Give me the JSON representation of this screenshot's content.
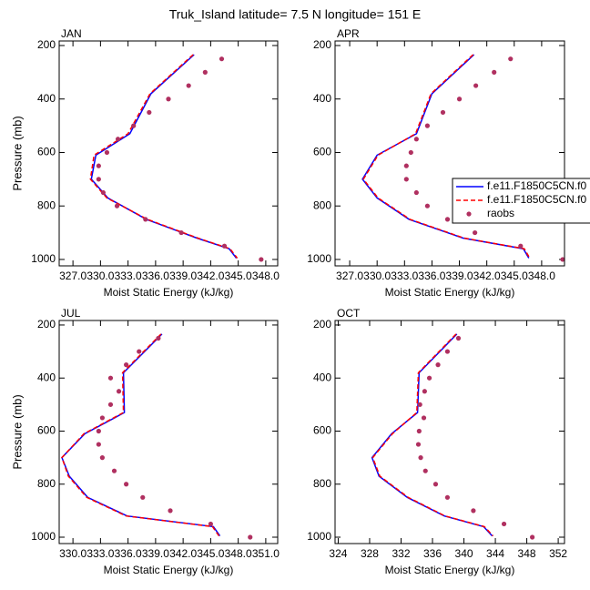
{
  "title": "Truk_Island  latitude= 7.5 N longitude= 151 E",
  "chart_data": [
    {
      "type": "line",
      "title": "JAN",
      "xlabel": "Moist Static Energy (kJ/kg)",
      "ylabel": "Pressure (mb)",
      "xlim": [
        325.5,
        349.3
      ],
      "ylim": [
        183,
        1024
      ],
      "yinverted": true,
      "xticks": [
        {
          "value": 327,
          "label": "327.0"
        },
        {
          "value": 330,
          "label": "330.0"
        },
        {
          "value": 333,
          "label": "333.0"
        },
        {
          "value": 336,
          "label": "336.0"
        },
        {
          "value": 339,
          "label": "339.0"
        },
        {
          "value": 342,
          "label": "342.0"
        },
        {
          "value": 345,
          "label": "345.0"
        },
        {
          "value": 348,
          "label": "348.0"
        }
      ],
      "yticks": [
        200,
        400,
        600,
        800,
        1000
      ],
      "series": [
        {
          "name": "f.e11.F1850C5CN.f0",
          "color": "#0000ff",
          "style": "solid",
          "x": [
            340.2,
            335.5,
            333.2,
            329.5,
            329.0,
            330.8,
            335.0,
            340.5,
            344.0,
            344.8
          ],
          "y": [
            234,
            380,
            530,
            610,
            700,
            770,
            850,
            920,
            960,
            995
          ]
        },
        {
          "name": "f.e11.F1850C5CN.f0",
          "color": "#ff0000",
          "style": "dashed",
          "x": [
            340.1,
            335.4,
            333.0,
            329.3,
            328.9,
            330.7,
            335.1,
            340.6,
            344.1,
            344.9
          ],
          "y": [
            234,
            380,
            530,
            610,
            700,
            770,
            850,
            920,
            960,
            995
          ]
        },
        {
          "name": "raobs",
          "color": "#b03060",
          "style": "markers",
          "x": [
            343.2,
            341.4,
            339.6,
            337.4,
            335.3,
            333.6,
            331.9,
            330.7,
            329.8,
            329.8,
            330.3,
            331.8,
            334.9,
            338.8,
            343.5,
            347.5
          ],
          "y": [
            250,
            300,
            350,
            400,
            450,
            500,
            550,
            600,
            650,
            700,
            750,
            800,
            850,
            900,
            950,
            1000
          ]
        }
      ]
    },
    {
      "type": "line",
      "title": "APR",
      "xlabel": "Moist Static Energy (kJ/kg)",
      "legend": "right",
      "xlim": [
        325.4,
        350.5
      ],
      "ylim": [
        183,
        1024
      ],
      "yinverted": true,
      "xticks": [
        {
          "value": 327,
          "label": "327.0"
        },
        {
          "value": 330,
          "label": "330.0"
        },
        {
          "value": 333,
          "label": "333.0"
        },
        {
          "value": 336,
          "label": "336.0"
        },
        {
          "value": 339,
          "label": "339.0"
        },
        {
          "value": 342,
          "label": "342.0"
        },
        {
          "value": 345,
          "label": "345.0"
        },
        {
          "value": 348,
          "label": "348.0"
        }
      ],
      "yticks": [
        200,
        400,
        600,
        800,
        1000
      ],
      "series": [
        {
          "name": "f.e11.F1850C5CN.f0",
          "color": "#0000ff",
          "style": "solid",
          "x": [
            340.6,
            336.0,
            334.3,
            330.0,
            328.4,
            330.0,
            333.5,
            339.4,
            346.0,
            346.6
          ],
          "y": [
            234,
            380,
            530,
            610,
            700,
            770,
            850,
            920,
            960,
            995
          ]
        },
        {
          "name": "f.e11.F1850C5CN.f0",
          "color": "#ff0000",
          "style": "dashed",
          "x": [
            340.5,
            335.9,
            334.2,
            330.1,
            328.5,
            330.1,
            333.6,
            339.5,
            346.1,
            346.7
          ],
          "y": [
            234,
            380,
            530,
            610,
            700,
            770,
            850,
            920,
            960,
            995
          ]
        },
        {
          "name": "raobs",
          "color": "#b03060",
          "style": "markers",
          "x": [
            344.6,
            342.8,
            340.8,
            339.0,
            337.2,
            335.5,
            334.3,
            333.7,
            333.2,
            333.2,
            334.3,
            335.5,
            337.7,
            340.7,
            345.7,
            350.3
          ],
          "y": [
            250,
            300,
            350,
            400,
            450,
            500,
            550,
            600,
            650,
            700,
            750,
            800,
            850,
            900,
            950,
            1000
          ]
        }
      ]
    },
    {
      "type": "line",
      "title": "JUL",
      "xlabel": "Moist Static Energy (kJ/kg)",
      "ylabel": "Pressure (mb)",
      "xlim": [
        328.5,
        352.3
      ],
      "ylim": [
        183,
        1024
      ],
      "yinverted": true,
      "xticks": [
        {
          "value": 330,
          "label": "330.0"
        },
        {
          "value": 333,
          "label": "333.0"
        },
        {
          "value": 336,
          "label": "336.0"
        },
        {
          "value": 339,
          "label": "339.0"
        },
        {
          "value": 342,
          "label": "342.0"
        },
        {
          "value": 345,
          "label": "345.0"
        },
        {
          "value": 348,
          "label": "348.0"
        },
        {
          "value": 351,
          "label": "351.0"
        }
      ],
      "yticks": [
        200,
        400,
        600,
        800,
        1000
      ],
      "series": [
        {
          "name": "f.e11.F1850C5CN.f0",
          "color": "#0000ff",
          "style": "solid",
          "x": [
            339.7,
            335.5,
            335.6,
            331.3,
            328.8,
            329.6,
            331.6,
            335.9,
            345.3,
            346.0
          ],
          "y": [
            234,
            380,
            530,
            610,
            700,
            770,
            850,
            920,
            960,
            995
          ]
        },
        {
          "name": "f.e11.F1850C5CN.f0",
          "color": "#ff0000",
          "style": "dashed",
          "x": [
            339.6,
            335.4,
            335.5,
            331.2,
            328.8,
            329.5,
            331.5,
            335.8,
            345.2,
            345.9
          ],
          "y": [
            234,
            380,
            530,
            610,
            700,
            770,
            850,
            920,
            960,
            995
          ]
        },
        {
          "name": "raobs",
          "color": "#b03060",
          "style": "markers",
          "x": [
            339.3,
            337.2,
            335.8,
            334.1,
            335.0,
            334.1,
            333.2,
            332.8,
            332.8,
            333.2,
            334.5,
            335.8,
            337.6,
            340.6,
            345.0,
            349.3
          ],
          "y": [
            250,
            300,
            350,
            400,
            450,
            500,
            550,
            600,
            650,
            700,
            750,
            800,
            850,
            900,
            950,
            1000
          ]
        }
      ]
    },
    {
      "type": "line",
      "title": "OCT",
      "xlabel": "Moist Static Energy (kJ/kg)",
      "xlim": [
        323.6,
        352.8
      ],
      "ylim": [
        183,
        1024
      ],
      "yinverted": true,
      "xticks": [
        324,
        328,
        332,
        336,
        340,
        344,
        348,
        352
      ],
      "yticks": [
        200,
        400,
        600,
        800,
        1000
      ],
      "series": [
        {
          "name": "f.e11.F1850C5CN.f0",
          "color": "#0000ff",
          "style": "solid",
          "x": [
            339.1,
            334.3,
            334.1,
            330.8,
            328.3,
            329.2,
            332.8,
            337.5,
            342.5,
            343.6
          ],
          "y": [
            234,
            380,
            530,
            610,
            700,
            770,
            850,
            920,
            960,
            995
          ]
        },
        {
          "name": "f.e11.F1850C5CN.f0",
          "color": "#ff0000",
          "style": "dashed",
          "x": [
            339.0,
            334.2,
            334.0,
            330.9,
            328.4,
            329.3,
            332.9,
            337.6,
            342.6,
            343.7
          ],
          "y": [
            234,
            380,
            530,
            610,
            700,
            770,
            850,
            920,
            960,
            995
          ]
        },
        {
          "name": "raobs",
          "color": "#b03060",
          "style": "markers",
          "x": [
            339.3,
            337.9,
            336.7,
            335.6,
            335.0,
            334.4,
            334.9,
            334.3,
            334.2,
            334.5,
            335.1,
            336.4,
            337.9,
            341.2,
            345.1,
            348.7
          ],
          "y": [
            250,
            300,
            350,
            400,
            450,
            500,
            550,
            600,
            650,
            700,
            750,
            800,
            850,
            900,
            950,
            1000
          ]
        }
      ]
    }
  ]
}
